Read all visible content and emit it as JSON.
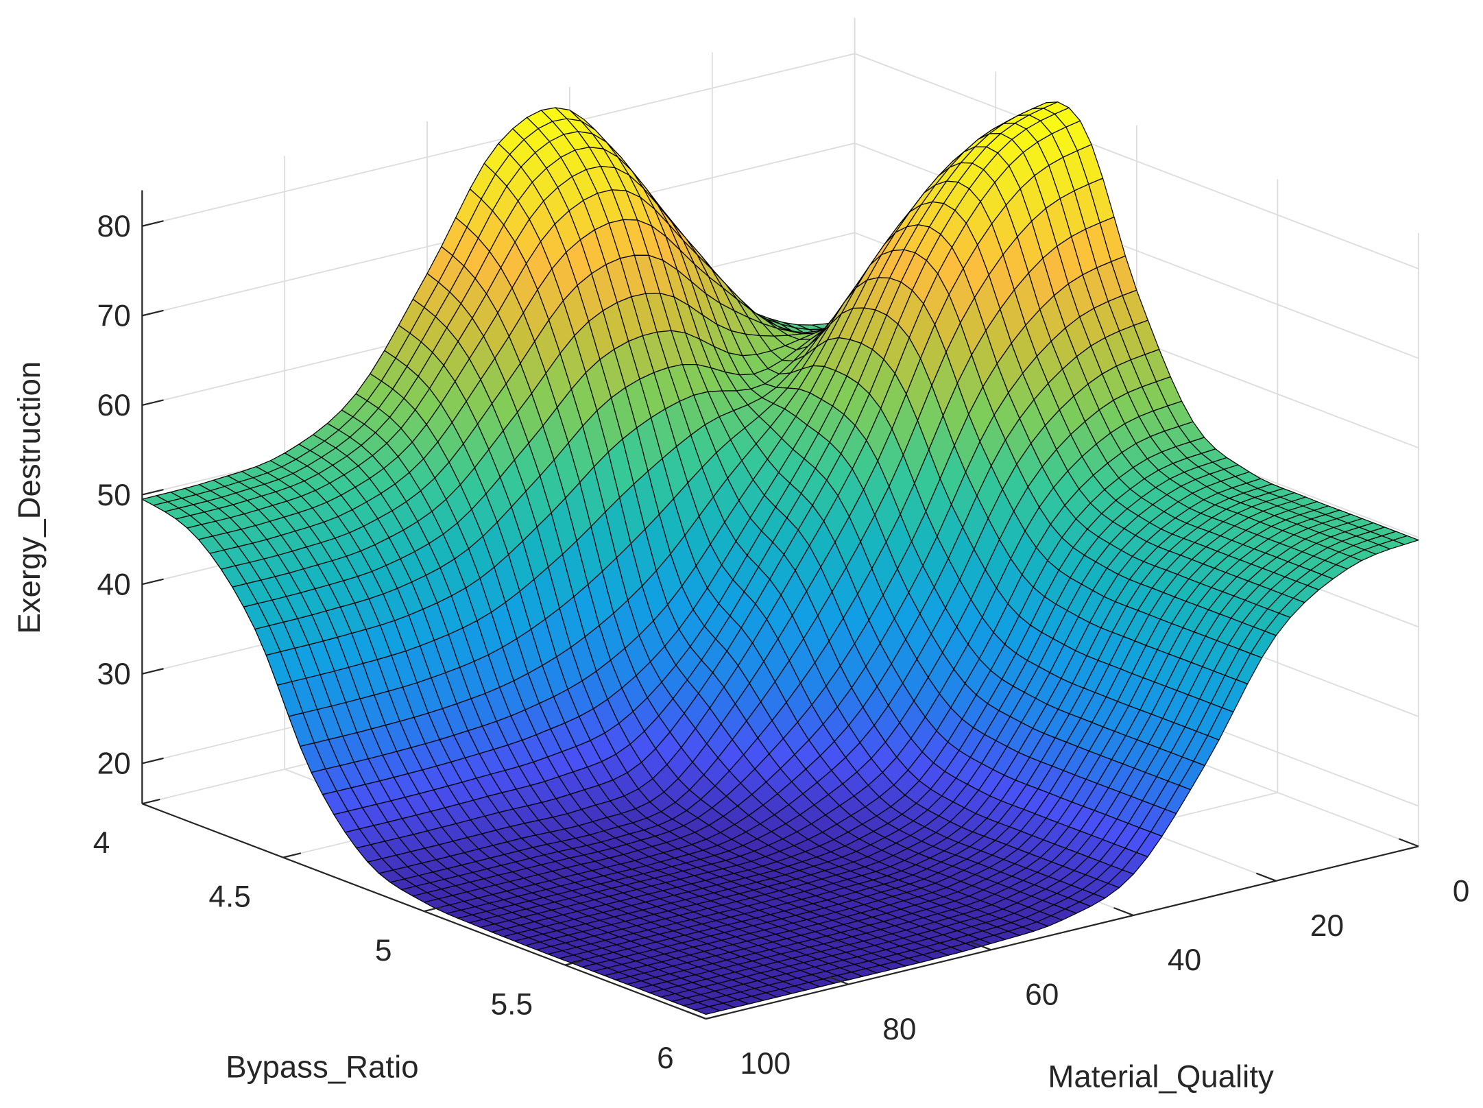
{
  "chart_data": {
    "type": "surface",
    "title": "",
    "xlabel": "Material_Quality",
    "ylabel": "Bypass_Ratio",
    "zlabel": "Exergy_Destruction",
    "x_values": [
      0,
      10,
      20,
      30,
      40,
      50,
      60,
      70,
      80,
      90,
      100
    ],
    "y_values": [
      4.0,
      4.2,
      4.4,
      4.6,
      4.8,
      5.0,
      5.2,
      5.4,
      5.6,
      5.8,
      6.0
    ],
    "z_grid_rows_by_bypass_ratio": [
      [
        50.3,
        51.9,
        58.0,
        70.0,
        81.4,
        79.6,
        67.0,
        55.5,
        50.8,
        49.7,
        49.5
      ],
      [
        52.4,
        52.2,
        56.2,
        65.7,
        74.8,
        73.0,
        62.4,
        52.5,
        48.5,
        47.5,
        47.4
      ],
      [
        62.6,
        61.5,
        57.9,
        54.8,
        57.8,
        56.0,
        49.2,
        43.0,
        40.5,
        39.9,
        39.8
      ],
      [
        79.8,
        77.1,
        68.6,
        55.1,
        45.0,
        35.3,
        29.8,
        27.4,
        26.5,
        26.2,
        26.2
      ],
      [
        82.1,
        79.0,
        68.9,
        52.2,
        39.6,
        28.5,
        20.2,
        18.7,
        18.7,
        18.6,
        18.6
      ],
      [
        65.6,
        63.3,
        55.5,
        40.6,
        28.9,
        21.8,
        17.4,
        16.5,
        16.5,
        16.5,
        16.5
      ],
      [
        53.3,
        51.8,
        45.7,
        32.6,
        22.1,
        18.0,
        16.3,
        16.1,
        16.1,
        16.1,
        16.1
      ],
      [
        50.1,
        48.7,
        43.2,
        30.6,
        20.3,
        16.9,
        16.2,
        16.0,
        16.0,
        16.0,
        16.0
      ],
      [
        49.7,
        48.4,
        42.9,
        30.3,
        20.1,
        16.9,
        16.2,
        16.0,
        16.0,
        16.0,
        16.0
      ],
      [
        49.7,
        48.4,
        42.9,
        30.3,
        20.1,
        16.9,
        16.2,
        16.0,
        16.0,
        16.0,
        16.0
      ],
      [
        49.7,
        48.4,
        42.9,
        30.3,
        20.1,
        16.9,
        16.2,
        16.0,
        16.0,
        16.0,
        16.0
      ]
    ],
    "xlim": [
      0,
      100
    ],
    "ylim": [
      4,
      6
    ],
    "zlim": [
      15.5,
      84
    ],
    "x_ticks": [
      "0",
      "20",
      "40",
      "60",
      "80",
      "100"
    ],
    "y_ticks": [
      "4",
      "4.5",
      "5",
      "5.5",
      "6"
    ],
    "z_ticks": [
      "20",
      "30",
      "40",
      "50",
      "60",
      "70",
      "80"
    ],
    "grid": true,
    "colormap": "parula",
    "colormap_stops": [
      "#3e26a8",
      "#4852f4",
      "#2184ea",
      "#11a0e3",
      "#15b4c0",
      "#37c897",
      "#80cc59",
      "#c8c03d",
      "#fbbc3e",
      "#f5e128",
      "#f9fa14"
    ],
    "edge_color": "#000000",
    "grid_color": "#dcdcdc",
    "axis_color": "#262626"
  }
}
